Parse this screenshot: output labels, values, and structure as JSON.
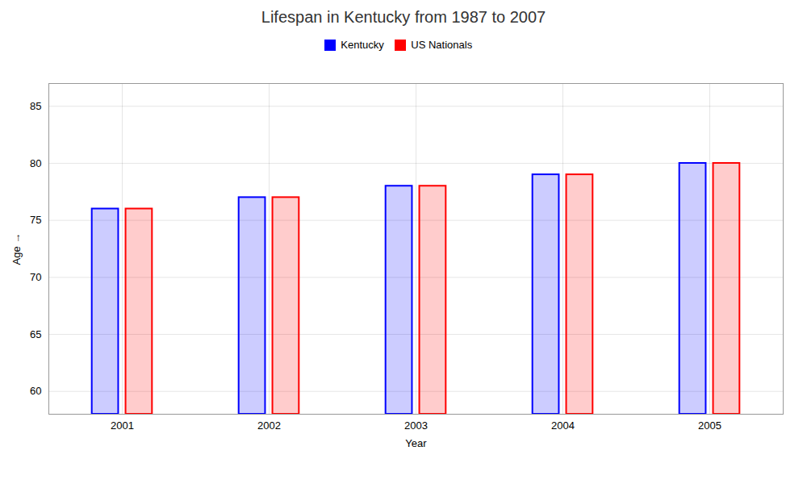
{
  "chart_data": {
    "type": "bar",
    "title": "Lifespan in Kentucky from 1987 to 2007",
    "xlabel": "Year",
    "ylabel": "Age",
    "categories": [
      "2001",
      "2002",
      "2003",
      "2004",
      "2005"
    ],
    "series": [
      {
        "name": "Kentucky",
        "color": "#0000ff",
        "values": [
          76.0,
          77.0,
          78.0,
          79.0,
          80.0
        ]
      },
      {
        "name": "US Nationals",
        "color": "#ff0000",
        "values": [
          76.0,
          77.0,
          78.0,
          79.0,
          80.0
        ]
      }
    ],
    "ylim": [
      58,
      87
    ],
    "yticks": [
      60,
      65,
      70,
      75,
      80,
      85
    ],
    "grid": true,
    "legend": "top"
  }
}
